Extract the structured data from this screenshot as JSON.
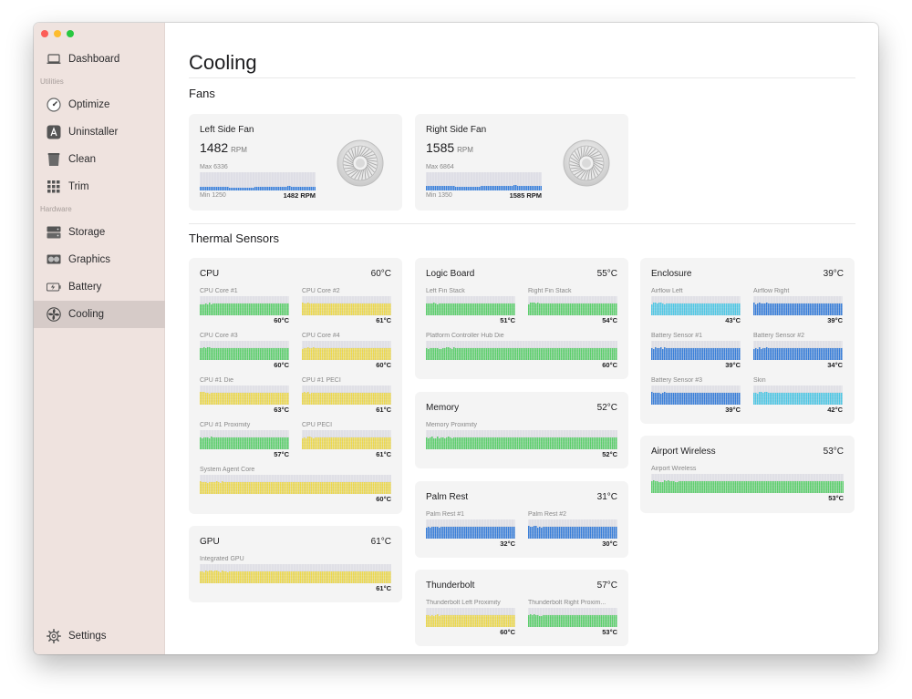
{
  "window": {
    "controls": [
      "close",
      "minimize",
      "zoom"
    ]
  },
  "sidebar": {
    "items": [
      {
        "id": "dashboard",
        "label": "Dashboard",
        "icon": "laptop-icon"
      },
      {
        "id": "optimize",
        "label": "Optimize",
        "icon": "speedometer-icon"
      },
      {
        "id": "uninstaller",
        "label": "Uninstaller",
        "icon": "app-store-icon"
      },
      {
        "id": "clean",
        "label": "Clean",
        "icon": "trash-bin-icon"
      },
      {
        "id": "trim",
        "label": "Trim",
        "icon": "grid-icon"
      },
      {
        "id": "storage",
        "label": "Storage",
        "icon": "storage-icon"
      },
      {
        "id": "graphics",
        "label": "Graphics",
        "icon": "graphics-card-icon"
      },
      {
        "id": "battery",
        "label": "Battery",
        "icon": "battery-icon"
      },
      {
        "id": "cooling",
        "label": "Cooling",
        "icon": "fan-icon"
      }
    ],
    "sections": {
      "utilities": "Utilities",
      "hardware": "Hardware"
    },
    "settings": {
      "label": "Settings",
      "icon": "gear-icon"
    },
    "active": "cooling"
  },
  "page": {
    "title": "Cooling",
    "fans_title": "Fans",
    "thermal_title": "Thermal Sensors"
  },
  "fans": [
    {
      "name": "Left Side Fan",
      "rpm": "1482",
      "unit": "RPM",
      "max": "Max 6336",
      "min": "Min 1250",
      "current": "1482 RPM",
      "level": 0.1
    },
    {
      "name": "Right Side Fan",
      "rpm": "1585",
      "unit": "RPM",
      "max": "Max 6864",
      "min": "Min 1350",
      "current": "1585 RPM",
      "level": 0.12
    }
  ],
  "groups": {
    "cpu": {
      "name": "CPU",
      "temp": "60°C",
      "sensors": [
        {
          "name": "CPU Core #1",
          "value": "60°C",
          "color": "#5fd36f"
        },
        {
          "name": "CPU Core #2",
          "value": "61°C",
          "color": "#f0dc50"
        },
        {
          "name": "CPU Core #3",
          "value": "60°C",
          "color": "#5fd36f"
        },
        {
          "name": "CPU Core #4",
          "value": "60°C",
          "color": "#f0dc50"
        },
        {
          "name": "CPU #1 Die",
          "value": "63°C",
          "color": "#f0dc50"
        },
        {
          "name": "CPU #1 PECI",
          "value": "61°C",
          "color": "#f0dc50"
        },
        {
          "name": "CPU #1 Proximity",
          "value": "57°C",
          "color": "#5fd36f"
        },
        {
          "name": "CPU PECI",
          "value": "61°C",
          "color": "#f0dc50"
        },
        {
          "name": "System Agent Core",
          "value": "60°C",
          "color": "#f0dc50"
        }
      ]
    },
    "gpu": {
      "name": "GPU",
      "temp": "61°C",
      "sensors": [
        {
          "name": "Integrated GPU",
          "value": "61°C",
          "color": "#f0dc50"
        }
      ]
    },
    "logic": {
      "name": "Logic Board",
      "temp": "55°C",
      "sensors": [
        {
          "name": "Left Fin Stack",
          "value": "51°C",
          "color": "#5fd36f"
        },
        {
          "name": "Right Fin Stack",
          "value": "54°C",
          "color": "#5fd36f"
        },
        {
          "name": "Platform Controller Hub Die",
          "value": "60°C",
          "color": "#5fd36f"
        }
      ]
    },
    "memory": {
      "name": "Memory",
      "temp": "52°C",
      "sensors": [
        {
          "name": "Memory Proximity",
          "value": "52°C",
          "color": "#5fd36f"
        }
      ]
    },
    "palm": {
      "name": "Palm Rest",
      "temp": "31°C",
      "sensors": [
        {
          "name": "Palm Rest #1",
          "value": "32°C",
          "color": "#3c82dc"
        },
        {
          "name": "Palm Rest #2",
          "value": "30°C",
          "color": "#3c82dc"
        }
      ]
    },
    "thunder": {
      "name": "Thunderbolt",
      "temp": "57°C",
      "sensors": [
        {
          "name": "Thunderbolt Left Proximity",
          "value": "60°C",
          "color": "#f0dc50"
        },
        {
          "name": "Thunderbolt Right Proxim...",
          "value": "53°C",
          "color": "#5fd36f"
        }
      ]
    },
    "enclosure": {
      "name": "Enclosure",
      "temp": "39°C",
      "sensors": [
        {
          "name": "Airflow Left",
          "value": "43°C",
          "color": "#52cbe8"
        },
        {
          "name": "Airflow Right",
          "value": "39°C",
          "color": "#3c82dc"
        },
        {
          "name": "Battery Sensor #1",
          "value": "39°C",
          "color": "#3c82dc"
        },
        {
          "name": "Battery Sensor #2",
          "value": "34°C",
          "color": "#3c82dc"
        },
        {
          "name": "Battery Sensor #3",
          "value": "39°C",
          "color": "#3c82dc"
        },
        {
          "name": "Skin",
          "value": "42°C",
          "color": "#52cbe8"
        }
      ]
    },
    "airport": {
      "name": "Airport Wireless",
      "temp": "53°C",
      "sensors": [
        {
          "name": "Airport Wireless",
          "value": "53°C",
          "color": "#5fd36f"
        }
      ]
    }
  }
}
